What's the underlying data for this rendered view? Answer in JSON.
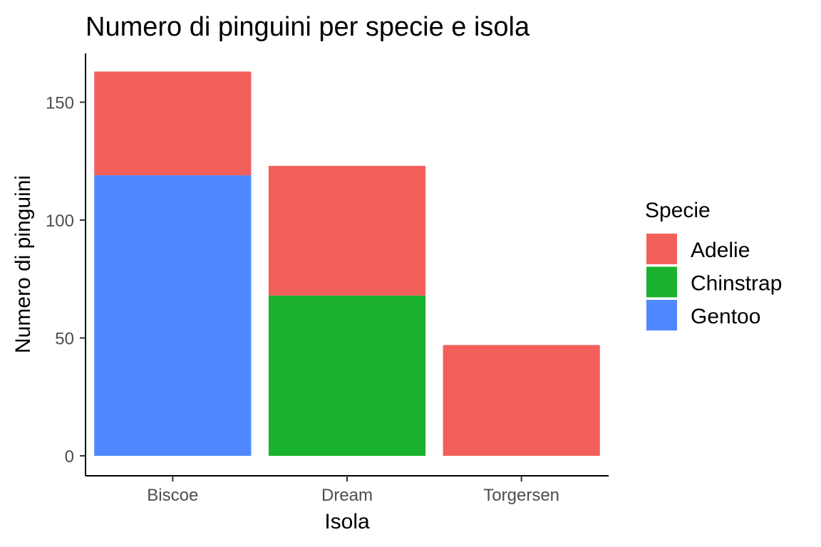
{
  "chart_data": {
    "type": "bar",
    "stacked": true,
    "title": "Numero di pinguini per specie e isola",
    "xlabel": "Isola",
    "ylabel": "Numero di pinguini",
    "categories": [
      "Biscoe",
      "Dream",
      "Torgersen"
    ],
    "series": [
      {
        "name": "Gentoo",
        "color": "#4F88FF",
        "values": [
          119,
          0,
          0
        ]
      },
      {
        "name": "Chinstrap",
        "color": "#1AB22F",
        "values": [
          0,
          68,
          0
        ]
      },
      {
        "name": "Adelie",
        "color": "#F3605C",
        "values": [
          44,
          55,
          47
        ]
      }
    ],
    "ylim": [
      0,
      170
    ],
    "yticks": [
      0,
      50,
      100,
      150
    ],
    "grid": false,
    "legend": {
      "title": "Specie",
      "position": "right",
      "items": [
        "Adelie",
        "Chinstrap",
        "Gentoo"
      ]
    }
  }
}
